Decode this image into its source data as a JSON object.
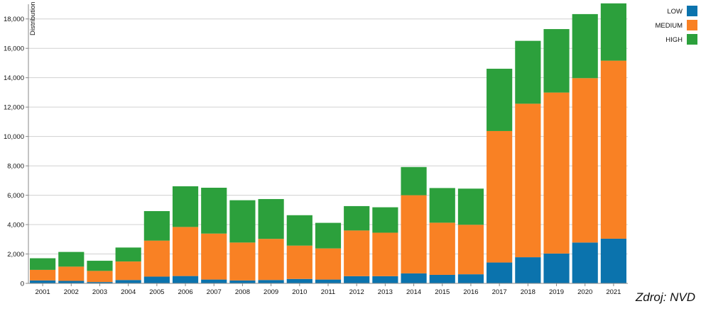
{
  "source_note": "Zdroj: NVD",
  "colors": {
    "low": "#0b73ad",
    "medium": "#f98124",
    "high": "#2ca03c",
    "grid": "#d0d0d0",
    "axis": "#888888",
    "text": "#111111"
  },
  "chart_data": {
    "type": "bar",
    "stacked": true,
    "title": "",
    "xlabel": "",
    "ylabel": "Distribution",
    "ylim": [
      0,
      19000
    ],
    "yticks": [
      0,
      2000,
      4000,
      6000,
      8000,
      10000,
      12000,
      14000,
      16000,
      18000
    ],
    "ytick_labels": [
      "0",
      "2,000",
      "4,000",
      "6,000",
      "8,000",
      "10,000",
      "12,000",
      "14,000",
      "16,000",
      "18,000"
    ],
    "grid": true,
    "legend_position": "top-right",
    "categories": [
      "2001",
      "2002",
      "2003",
      "2004",
      "2005",
      "2006",
      "2007",
      "2008",
      "2009",
      "2010",
      "2011",
      "2012",
      "2013",
      "2014",
      "2015",
      "2016",
      "2017",
      "2018",
      "2019",
      "2020",
      "2021"
    ],
    "series": [
      {
        "name": "LOW",
        "color": "#0b73ad",
        "values": [
          200,
          170,
          90,
          230,
          460,
          500,
          260,
          200,
          230,
          300,
          260,
          490,
          490,
          680,
          580,
          620,
          1420,
          1780,
          2030,
          2780,
          3040
        ]
      },
      {
        "name": "MEDIUM",
        "color": "#f98124",
        "values": [
          720,
          970,
          760,
          1260,
          2450,
          3340,
          3130,
          2580,
          2800,
          2270,
          2120,
          3110,
          2960,
          5320,
          3550,
          3370,
          8950,
          10450,
          10960,
          11190,
          12120
        ]
      },
      {
        "name": "HIGH",
        "color": "#2ca03c",
        "values": [
          790,
          1000,
          690,
          950,
          2010,
          2770,
          3120,
          2880,
          2710,
          2070,
          1740,
          1660,
          1730,
          1920,
          2360,
          2460,
          4240,
          4280,
          4320,
          4360,
          3900
        ]
      }
    ]
  }
}
